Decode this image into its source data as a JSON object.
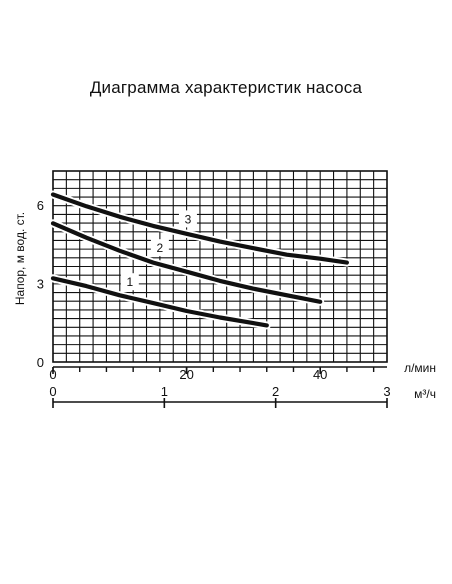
{
  "chart_data": {
    "type": "line",
    "title": "Диаграмма характеристик насоса",
    "ylabel": "Напор, м вод. ст.",
    "x_primary": {
      "unit_label": "л/мин",
      "range": [
        0,
        50
      ],
      "ticks": [
        0,
        20,
        40
      ],
      "tick_labels": [
        "0",
        "20",
        "40"
      ]
    },
    "x_secondary": {
      "unit_label": "м³/ч",
      "range": [
        0,
        3
      ],
      "ticks": [
        0,
        1,
        2,
        3
      ],
      "tick_labels": [
        "0",
        "1",
        "2",
        "3"
      ]
    },
    "y_axis": {
      "range": [
        0,
        7.3
      ],
      "ticks": [
        0,
        3,
        6
      ],
      "tick_labels": [
        "0",
        "3",
        "6"
      ]
    },
    "grid": true,
    "series": [
      {
        "name": "1",
        "x": [
          0,
          5,
          10,
          15,
          20,
          25,
          32
        ],
        "y": [
          3.2,
          2.9,
          2.55,
          2.25,
          1.95,
          1.7,
          1.4
        ],
        "label_at": [
          11.5,
          3.05
        ]
      },
      {
        "name": "2",
        "x": [
          0,
          5,
          10,
          15,
          20,
          25,
          30,
          40
        ],
        "y": [
          5.3,
          4.75,
          4.25,
          3.8,
          3.45,
          3.1,
          2.8,
          2.3
        ],
        "label_at": [
          16,
          4.35
        ]
      },
      {
        "name": "3",
        "x": [
          0,
          5,
          10,
          15,
          20,
          25,
          30,
          35,
          40,
          44
        ],
        "y": [
          6.4,
          5.95,
          5.55,
          5.2,
          4.9,
          4.6,
          4.35,
          4.1,
          3.95,
          3.8
        ],
        "label_at": [
          20.2,
          5.45
        ]
      }
    ]
  }
}
